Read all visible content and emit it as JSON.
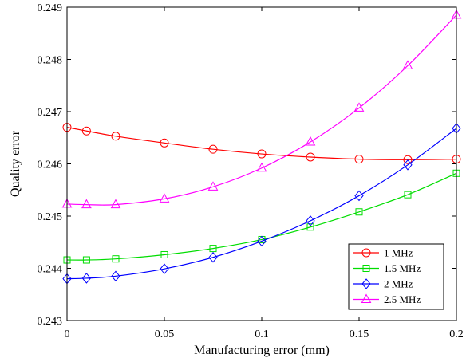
{
  "chart_data": {
    "type": "line",
    "title": "",
    "xlabel": "Manufacturing error (mm)",
    "ylabel": "Quality error",
    "xlim": [
      0,
      0.2
    ],
    "ylim": [
      0.243,
      0.249
    ],
    "xticks": [
      0,
      0.05,
      0.1,
      0.15,
      0.2
    ],
    "xtick_labels": [
      "0",
      "0.05",
      "0.1",
      "0.15",
      "0.2"
    ],
    "yticks": [
      0.243,
      0.244,
      0.245,
      0.246,
      0.247,
      0.248,
      0.249
    ],
    "ytick_labels": [
      "0.243",
      "0.244",
      "0.245",
      "0.246",
      "0.247",
      "0.248",
      "0.249"
    ],
    "grid": false,
    "legend_position": "bottom-right",
    "x": [
      0,
      0.01,
      0.025,
      0.05,
      0.075,
      0.1,
      0.125,
      0.15,
      0.175,
      0.2
    ],
    "series": [
      {
        "name": "1 MHz",
        "color": "#ff0000",
        "marker": "circle",
        "values": [
          0.2467,
          0.24663,
          0.24653,
          0.2464,
          0.24628,
          0.24619,
          0.24613,
          0.24609,
          0.24608,
          0.24609
        ]
      },
      {
        "name": "1.5 MHz",
        "color": "#00dd00",
        "marker": "square",
        "values": [
          0.24416,
          0.24416,
          0.24418,
          0.24426,
          0.24438,
          0.24455,
          0.24479,
          0.24508,
          0.24541,
          0.24582
        ]
      },
      {
        "name": "2 MHz",
        "color": "#0000ff",
        "marker": "diamond",
        "values": [
          0.2438,
          0.24381,
          0.24385,
          0.24399,
          0.24421,
          0.24452,
          0.24491,
          0.24539,
          0.24598,
          0.24668
        ]
      },
      {
        "name": "2.5 MHz",
        "color": "#ff00ff",
        "marker": "triangle",
        "values": [
          0.24523,
          0.24522,
          0.24522,
          0.24533,
          0.24556,
          0.24592,
          0.24642,
          0.24707,
          0.24788,
          0.24885
        ]
      }
    ]
  }
}
